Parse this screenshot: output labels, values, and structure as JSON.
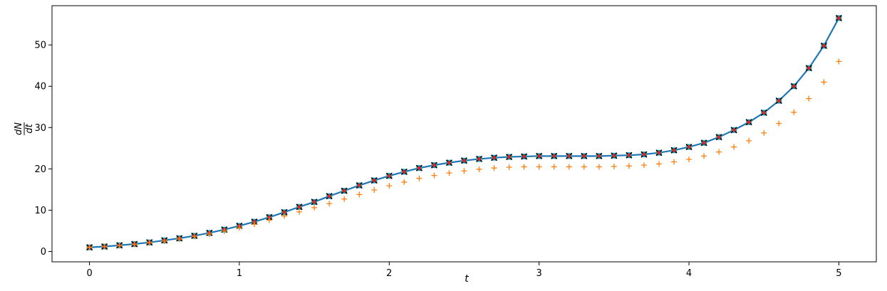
{
  "chart_data": {
    "type": "line",
    "title": "",
    "xlabel": "t",
    "ylabel_num": "dN",
    "ylabel_den": "dt",
    "xlim": [
      -0.25,
      5.25
    ],
    "ylim": [
      -2.5,
      59.5
    ],
    "xticks": [
      0,
      1,
      2,
      3,
      4,
      5
    ],
    "yticks": [
      0,
      10,
      20,
      30,
      40,
      50
    ],
    "grid": false,
    "legend": "none",
    "x": [
      0,
      0.1,
      0.2,
      0.3,
      0.4,
      0.5,
      0.6,
      0.7,
      0.8,
      0.9,
      1.0,
      1.1,
      1.2,
      1.3,
      1.4,
      1.5,
      1.6,
      1.7,
      1.8,
      1.9,
      2.0,
      2.1,
      2.2,
      2.3,
      2.4,
      2.5,
      2.6,
      2.7,
      2.8,
      2.9,
      3.0,
      3.1,
      3.2,
      3.3,
      3.4,
      3.5,
      3.6,
      3.7,
      3.8,
      3.9,
      4.0,
      4.1,
      4.2,
      4.3,
      4.4,
      4.5,
      4.6,
      4.7,
      4.8,
      4.9,
      5.0
    ],
    "series": [
      {
        "marker": "line",
        "color": "#1f77b4",
        "values": [
          1.0,
          1.2,
          1.5,
          1.8,
          2.2,
          2.7,
          3.2,
          3.8,
          4.5,
          5.3,
          6.2,
          7.2,
          8.3,
          9.5,
          10.8,
          12.0,
          13.4,
          14.7,
          16.0,
          17.2,
          18.3,
          19.3,
          20.2,
          20.9,
          21.5,
          22.0,
          22.4,
          22.7,
          22.9,
          23.0,
          23.1,
          23.1,
          23.1,
          23.1,
          23.1,
          23.2,
          23.3,
          23.5,
          23.9,
          24.5,
          25.3,
          26.3,
          27.7,
          29.4,
          31.3,
          33.6,
          36.5,
          40.0,
          44.4,
          49.8,
          56.5
        ]
      },
      {
        "marker": "square",
        "color": "#17a2b8",
        "values": [
          1.0,
          1.2,
          1.5,
          1.8,
          2.2,
          2.7,
          3.2,
          3.8,
          4.5,
          5.3,
          6.2,
          7.2,
          8.3,
          9.5,
          10.8,
          12.0,
          13.4,
          14.7,
          16.0,
          17.2,
          18.3,
          19.3,
          20.2,
          20.9,
          21.5,
          22.0,
          22.4,
          22.7,
          22.9,
          23.0,
          23.1,
          23.1,
          23.1,
          23.1,
          23.1,
          23.2,
          23.3,
          23.5,
          23.9,
          24.5,
          25.3,
          26.3,
          27.7,
          29.4,
          31.3,
          33.6,
          36.5,
          40.0,
          44.4,
          49.8,
          56.5
        ]
      },
      {
        "marker": "x",
        "color": "#000000",
        "values": [
          1.0,
          1.2,
          1.5,
          1.8,
          2.2,
          2.7,
          3.2,
          3.8,
          4.5,
          5.3,
          6.2,
          7.2,
          8.3,
          9.5,
          10.8,
          12.0,
          13.4,
          14.7,
          16.0,
          17.2,
          18.3,
          19.3,
          20.2,
          20.9,
          21.5,
          22.0,
          22.4,
          22.7,
          22.9,
          23.0,
          23.1,
          23.1,
          23.1,
          23.1,
          23.1,
          23.2,
          23.3,
          23.5,
          23.9,
          24.5,
          25.3,
          26.3,
          27.7,
          29.4,
          31.3,
          33.6,
          36.5,
          40.0,
          44.4,
          49.8,
          56.5
        ]
      },
      {
        "marker": "dot",
        "color": "#d62728",
        "values": [
          1.0,
          1.2,
          1.5,
          1.8,
          2.2,
          2.7,
          3.2,
          3.8,
          4.5,
          5.3,
          6.2,
          7.2,
          8.3,
          9.5,
          10.8,
          12.0,
          13.4,
          14.7,
          16.0,
          17.2,
          18.3,
          19.3,
          20.2,
          20.9,
          21.5,
          22.0,
          22.4,
          22.7,
          22.9,
          23.0,
          23.1,
          23.1,
          23.1,
          23.1,
          23.1,
          23.2,
          23.3,
          23.5,
          23.9,
          24.5,
          25.3,
          26.3,
          27.7,
          29.4,
          31.3,
          33.6,
          36.5,
          40.0,
          44.4,
          49.8,
          56.5
        ]
      },
      {
        "marker": "plus",
        "color": "#ff7f0e",
        "values": [
          1.0,
          1.2,
          1.4,
          1.7,
          2.1,
          2.5,
          3.0,
          3.6,
          4.2,
          4.9,
          5.7,
          6.6,
          7.6,
          8.6,
          9.6,
          10.6,
          11.6,
          12.7,
          13.8,
          14.9,
          15.9,
          16.8,
          17.7,
          18.4,
          19.0,
          19.5,
          19.9,
          20.2,
          20.4,
          20.5,
          20.5,
          20.5,
          20.5,
          20.5,
          20.5,
          20.6,
          20.7,
          20.9,
          21.2,
          21.7,
          22.3,
          23.1,
          24.1,
          25.3,
          26.8,
          28.7,
          31.0,
          33.7,
          37.0,
          41.0,
          46.0
        ]
      }
    ]
  }
}
